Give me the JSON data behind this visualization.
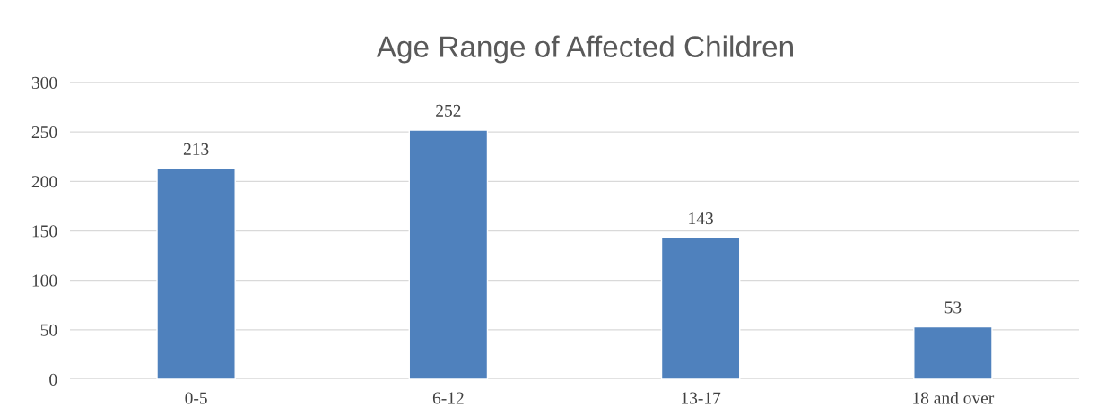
{
  "chart_data": {
    "type": "bar",
    "title": "Age Range of Affected Children",
    "categories": [
      "0-5",
      "6-12",
      "13-17",
      "18 and over"
    ],
    "values": [
      213,
      252,
      143,
      53
    ],
    "color": "#4f81bd",
    "ylim": [
      0,
      300
    ],
    "yticks": [
      0,
      50,
      100,
      150,
      200,
      250,
      300
    ],
    "grid": "y",
    "data_labels": true
  }
}
